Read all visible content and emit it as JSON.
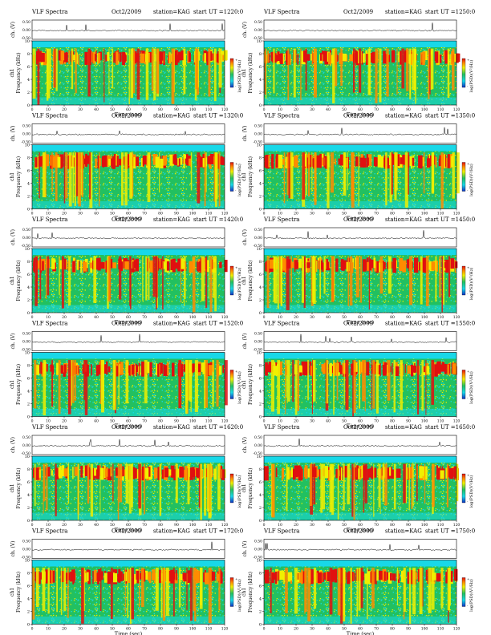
{
  "header": {
    "title": "VLF Spectra",
    "date": "Oct2/2009",
    "station": "station=KAG",
    "start_prefix": "start  UT  ="
  },
  "axis_labels": {
    "ch_amp": "ch. (V)",
    "ch1": "ch1",
    "frequency": "Frequency  (kHz)",
    "time": "Time  (sec)",
    "colorbar": "log(PSD)(V²/Hz)"
  },
  "colors": {
    "background": "#ffffff",
    "axis": "#000000",
    "trace": "#000000",
    "cyan": "#18d8e8",
    "green": "#22c060",
    "yellow": "#f0f000",
    "orange": "#ff8c00",
    "red": "#e01010",
    "blue": "#1030c0"
  },
  "chart_data": {
    "type": "heatmap",
    "description_scope": "12 VLF dynamic spectra (panels), 6 rows x 2 columns, each with a waveform strip (ch. V) above a frequency-time spectrogram",
    "xlim": [
      0,
      120
    ],
    "x_ticks": [
      0,
      10,
      20,
      30,
      40,
      50,
      60,
      70,
      80,
      90,
      100,
      110,
      120
    ],
    "ylim_khz": [
      0,
      10
    ],
    "y_ticks_khz": [
      0,
      2,
      4,
      6,
      8,
      10
    ],
    "waveform_ylim_v": [
      -0.5,
      0.5
    ],
    "waveform_ticks_v": [
      "0.50",
      "0.00",
      "-0.50"
    ],
    "colorbar_ticks": [
      "+",
      "-"
    ],
    "colorscale": [
      "blue",
      "cyan",
      "green",
      "yellow",
      "orange",
      "red"
    ],
    "panels": [
      {
        "start_ut": "1220:0"
      },
      {
        "start_ut": "1250:0"
      },
      {
        "start_ut": "1320:0"
      },
      {
        "start_ut": "1350:0"
      },
      {
        "start_ut": "1420:0"
      },
      {
        "start_ut": "1450:0"
      },
      {
        "start_ut": "1520:0"
      },
      {
        "start_ut": "1550:0"
      },
      {
        "start_ut": "1620:0"
      },
      {
        "start_ut": "1650:0"
      },
      {
        "start_ut": "1720:0"
      },
      {
        "start_ut": "1750:0"
      }
    ]
  }
}
